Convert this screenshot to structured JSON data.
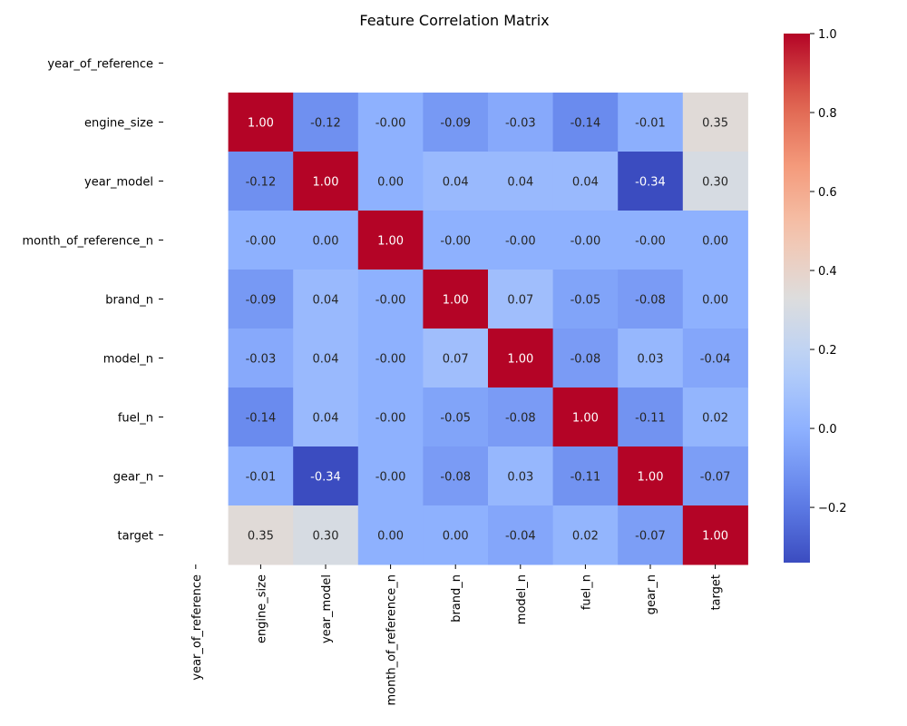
{
  "chart_data": {
    "type": "heatmap",
    "title": "Feature Correlation Matrix",
    "rows": [
      "year_of_reference",
      "engine_size",
      "year_model",
      "month_of_reference_n",
      "brand_n",
      "model_n",
      "fuel_n",
      "gear_n",
      "target"
    ],
    "columns": [
      "year_of_reference",
      "engine_size",
      "year_model",
      "month_of_reference_n",
      "brand_n",
      "model_n",
      "fuel_n",
      "gear_n",
      "target"
    ],
    "values": [
      [
        null,
        null,
        null,
        null,
        null,
        null,
        null,
        null,
        null
      ],
      [
        null,
        1.0,
        -0.12,
        -0.0,
        -0.09,
        -0.03,
        -0.14,
        -0.01,
        0.35
      ],
      [
        null,
        -0.12,
        1.0,
        0.0,
        0.04,
        0.04,
        0.04,
        -0.34,
        0.3
      ],
      [
        null,
        -0.0,
        0.0,
        1.0,
        -0.0,
        -0.0,
        -0.0,
        -0.0,
        0.0
      ],
      [
        null,
        -0.09,
        0.04,
        -0.0,
        1.0,
        0.07,
        -0.05,
        -0.08,
        0.0
      ],
      [
        null,
        -0.03,
        0.04,
        -0.0,
        0.07,
        1.0,
        -0.08,
        0.03,
        -0.04
      ],
      [
        null,
        -0.14,
        0.04,
        -0.0,
        -0.05,
        -0.08,
        1.0,
        -0.11,
        0.02
      ],
      [
        null,
        -0.01,
        -0.34,
        -0.0,
        -0.08,
        0.03,
        -0.11,
        1.0,
        -0.07
      ],
      [
        null,
        0.35,
        0.3,
        0.0,
        0.0,
        -0.04,
        0.02,
        -0.07,
        1.0
      ]
    ],
    "value_format": "2 decimals",
    "colormap": "coolwarm",
    "vmin": -0.34,
    "vmax": 1.0,
    "colorbar": {
      "ticks": [
        -0.2,
        0.0,
        0.2,
        0.4,
        0.6,
        0.8,
        1.0
      ],
      "tick_labels": [
        "−0.2",
        "0.0",
        "0.2",
        "0.4",
        "0.6",
        "0.8",
        "1.0"
      ]
    }
  }
}
